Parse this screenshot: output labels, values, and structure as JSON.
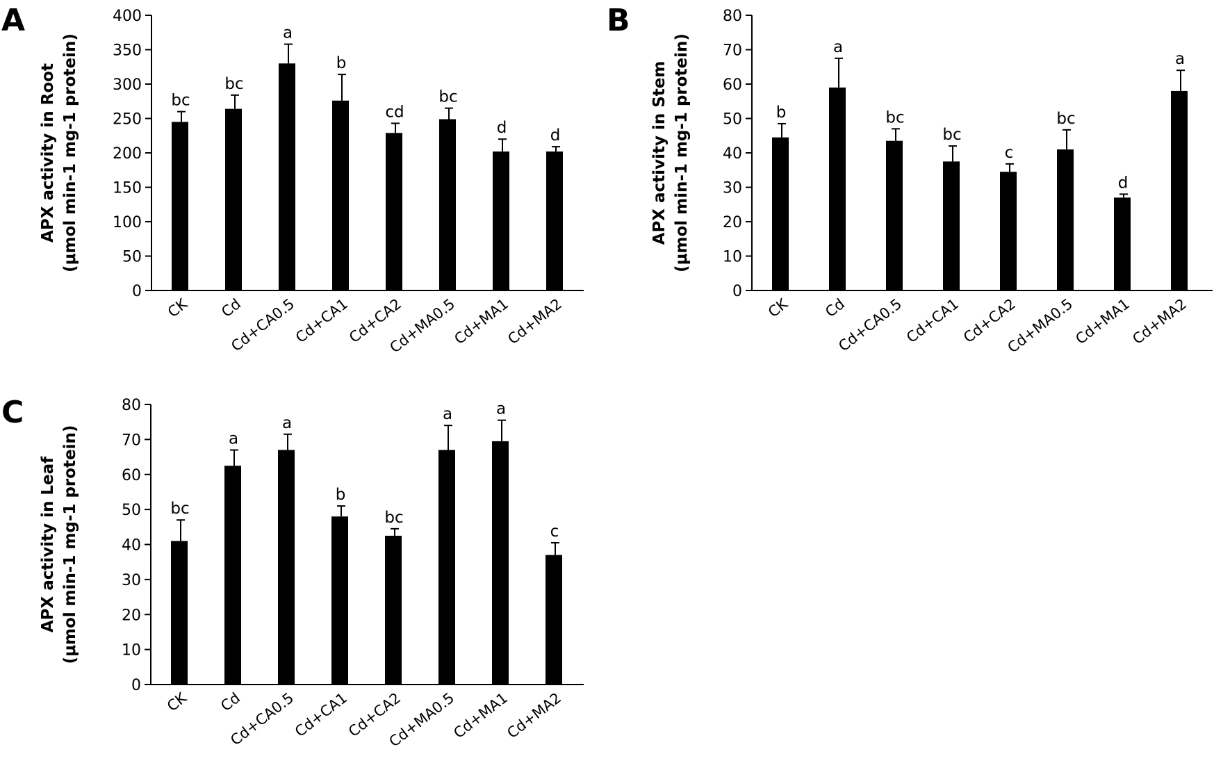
{
  "chart_data": [
    {
      "panel": "A",
      "type": "bar",
      "ylabel_line1": "APX activity in Root",
      "ylabel_line2": "(μmol min-1 mg-1 protein)",
      "ylim": [
        0,
        400
      ],
      "yticks": [
        0,
        50,
        100,
        150,
        200,
        250,
        300,
        350,
        400
      ],
      "categories": [
        "CK",
        "Cd",
        "Cd+CA0.5",
        "Cd+CA1",
        "Cd+CA2",
        "Cd+MA0.5",
        "Cd+MA1",
        "Cd+MA2"
      ],
      "values": [
        245,
        264,
        330,
        276,
        229,
        249,
        202,
        202
      ],
      "errors": [
        15,
        20,
        28,
        38,
        14,
        16,
        18,
        7
      ],
      "letters": [
        "bc",
        "bc",
        "a",
        "b",
        "cd",
        "bc",
        "d",
        "d"
      ]
    },
    {
      "panel": "B",
      "type": "bar",
      "ylabel_line1": "APX activity in Stem",
      "ylabel_line2": "(μmol min-1 mg-1 protein)",
      "ylim": [
        0,
        80
      ],
      "yticks": [
        0,
        10,
        20,
        30,
        40,
        50,
        60,
        70,
        80
      ],
      "categories": [
        "CK",
        "Cd",
        "Cd+CA0.5",
        "Cd+CA1",
        "Cd+CA2",
        "Cd+MA0.5",
        "Cd+MA1",
        "Cd+MA2"
      ],
      "values": [
        44.5,
        59,
        43.5,
        37.5,
        34.5,
        41,
        27,
        58
      ],
      "errors": [
        4,
        8.5,
        3.5,
        4.5,
        2.3,
        5.7,
        1,
        6
      ],
      "letters": [
        "b",
        "a",
        "bc",
        "bc",
        "c",
        "bc",
        "d",
        "a"
      ]
    },
    {
      "panel": "C",
      "type": "bar",
      "ylabel_line1": "APX activity in Leaf",
      "ylabel_line2": "(μmol min-1 mg-1 protein)",
      "ylim": [
        0,
        80
      ],
      "yticks": [
        0,
        10,
        20,
        30,
        40,
        50,
        60,
        70,
        80
      ],
      "categories": [
        "CK",
        "Cd",
        "Cd+CA0.5",
        "Cd+CA1",
        "Cd+CA2",
        "Cd+MA0.5",
        "Cd+MA1",
        "Cd+MA2"
      ],
      "values": [
        41,
        62.5,
        67,
        48,
        42.5,
        67,
        69.5,
        37
      ],
      "errors": [
        6,
        4.5,
        4.5,
        3,
        2,
        7,
        6,
        3.5
      ],
      "letters": [
        "bc",
        "a",
        "a",
        "b",
        "bc",
        "a",
        "a",
        "c"
      ]
    }
  ]
}
